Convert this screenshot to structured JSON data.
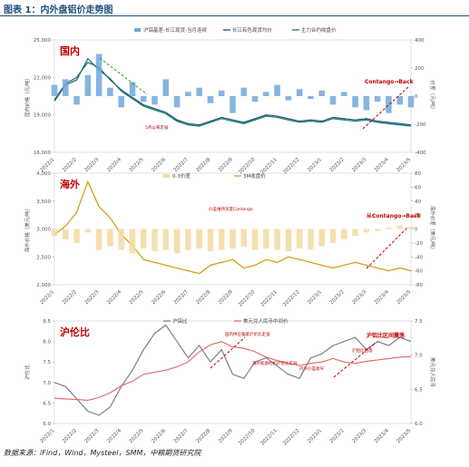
{
  "figure": {
    "title": "图表 1：内外盘铝价走势图",
    "source": "数据来源：iFind，Wind，Mysteel，SMM，中粮期货研究院"
  },
  "colors": {
    "title": "#1f4e79",
    "accent_red": "#c00000",
    "blue_line": "#1f4e79",
    "blue_bar": "#6fa8dc",
    "gray_line": "#7f7f7f",
    "gold_line": "#d4a017",
    "gold_bar": "#f3d9a0",
    "teal_line": "#1a7a6e",
    "red_line": "#e06666",
    "green_highlight": "#33a02c"
  },
  "chart_data": [
    {
      "type": "line",
      "panel": "domestic",
      "tag": "国内",
      "x_ticks": [
        "2022/1",
        "2022/2",
        "2022/3",
        "2022/4",
        "2022/5",
        "2022/6",
        "2022/7",
        "2022/8",
        "2022/9",
        "2022/10",
        "2022/11",
        "2022/12",
        "2023/1",
        "2023/2",
        "2023/3",
        "2023/4",
        "2023/5"
      ],
      "ylabel_left": "国内价格（元/吨）",
      "ylabel_right": "价差（元/吨）",
      "ylim_left": [
        16000,
        25000
      ],
      "yticks_left": [
        16000,
        19000,
        22000,
        25000
      ],
      "ylim_right": [
        -400,
        400
      ],
      "yticks_right": [
        -400,
        -200,
        0,
        200,
        400
      ],
      "legend": [
        "沪铝基差-长江现货-当月连续",
        "长江有色现货均价",
        "主力合约收盘价"
      ],
      "annotations": [
        "Contango→Back",
        "5月以来走弱"
      ],
      "series": [
        {
          "name": "长江有色现货均价",
          "axis": "left",
          "values": [
            20200,
            21500,
            22000,
            23200,
            22800,
            21800,
            21000,
            20400,
            19800,
            19500,
            19200,
            18600,
            18300,
            18200,
            18500,
            18800,
            18600,
            18400,
            18700,
            19000,
            18900,
            18700,
            18500,
            18600,
            18500,
            18800,
            18700,
            18600,
            18700,
            18500,
            18400,
            18300,
            18200
          ]
        },
        {
          "name": "主力合约收盘价",
          "axis": "left",
          "values": [
            20100,
            21400,
            21800,
            23500,
            22600,
            21900,
            20900,
            20300,
            19700,
            19400,
            19100,
            18500,
            18200,
            18100,
            18400,
            18700,
            18500,
            18300,
            18600,
            18900,
            18800,
            18600,
            18400,
            18500,
            18400,
            18700,
            18600,
            18500,
            18600,
            18400,
            18300,
            18200,
            18100
          ]
        },
        {
          "name": "沪铝基差-长江现货-当月连续",
          "axis": "right",
          "values": [
            80,
            120,
            -60,
            150,
            300,
            60,
            -80,
            100,
            -40,
            -60,
            120,
            -80,
            30,
            60,
            -50,
            40,
            -120,
            60,
            -40,
            30,
            80,
            -30,
            50,
            -20,
            40,
            -60,
            30,
            -80,
            -100,
            -40,
            -120,
            -60,
            -80
          ]
        }
      ]
    },
    {
      "type": "line",
      "panel": "overseas",
      "tag": "海外",
      "x_ticks": [
        "2022/1",
        "2022/2",
        "2022/3",
        "2022/4",
        "2022/5",
        "2022/6",
        "2022/7",
        "2022/8",
        "2022/9",
        "2022/10",
        "2022/11",
        "2022/12",
        "2023/1",
        "2023/2",
        "2023/3",
        "2023/4",
        "2023/5"
      ],
      "ylabel_left": "海外价格（美元/吨）",
      "ylabel_right": "海外价差（美元/吨）",
      "ylim_left": [
        2000,
        4000
      ],
      "yticks_left": [
        2000,
        2500,
        3000,
        3500,
        4000
      ],
      "ylim_right": [
        -80,
        80
      ],
      "yticks_right": [
        -80,
        -60,
        -40,
        -20,
        0,
        20,
        40,
        60,
        80
      ],
      "legend": [
        "0-3价差",
        "3M收盘价"
      ],
      "annotations": [
        "从Contango→Back",
        "价差维持深度Contango"
      ],
      "series": [
        {
          "name": "3M收盘价",
          "axis": "left",
          "values": [
            2900,
            3050,
            3300,
            3850,
            3400,
            3200,
            2900,
            2700,
            2450,
            2400,
            2350,
            2300,
            2250,
            2200,
            2350,
            2400,
            2450,
            2300,
            2350,
            2450,
            2400,
            2500,
            2450,
            2400,
            2350,
            2300,
            2350,
            2400,
            2350,
            2300,
            2250,
            2300,
            2250
          ]
        },
        {
          "name": "0-3价差",
          "axis": "right",
          "values": [
            -10,
            -15,
            -20,
            -5,
            -30,
            -25,
            -30,
            -35,
            -28,
            -32,
            -30,
            -35,
            -30,
            -28,
            -32,
            -30,
            -28,
            -25,
            -30,
            -28,
            -30,
            -32,
            -28,
            -30,
            -25,
            -20,
            -15,
            -10,
            -5,
            -3,
            2,
            5,
            3
          ]
        }
      ]
    },
    {
      "type": "line",
      "panel": "ratio",
      "tag": "沪伦比",
      "x_ticks": [
        "2022/1",
        "2022/2",
        "2022/3",
        "2022/4",
        "2022/5",
        "2022/6",
        "2022/7",
        "2022/8",
        "2022/9",
        "2022/10",
        "2022/11",
        "2022/12",
        "2023/1",
        "2023/2",
        "2023/3",
        "2023/4",
        "2023/5"
      ],
      "ylabel_left": "沪伦比",
      "ylabel_right": "美元兑人民币",
      "ylim_left": [
        6.0,
        8.5
      ],
      "yticks_left": [
        6.0,
        6.5,
        7.0,
        7.5,
        8.0,
        8.5
      ],
      "ylim_right": [
        6.0,
        7.5
      ],
      "yticks_right": [
        6.0,
        6.5,
        7.0,
        7.5
      ],
      "legend": [
        "沪铝比",
        "美元兑人民币中间价"
      ],
      "annotations": [
        "国内供应偏紧沪伦比走强",
        "海外能源危机沪伦比走弱",
        "内外价差收窄",
        "沪铝比回落",
        "沪铝比区间震荡"
      ],
      "series": [
        {
          "name": "沪铝比",
          "axis": "left",
          "values": [
            7.0,
            6.9,
            6.6,
            6.3,
            6.2,
            6.4,
            6.9,
            7.3,
            7.8,
            8.2,
            8.4,
            8.0,
            7.6,
            7.9,
            7.5,
            7.8,
            7.2,
            7.1,
            7.5,
            7.6,
            7.4,
            7.2,
            7.1,
            7.6,
            7.7,
            7.9,
            8.0,
            8.1,
            7.8,
            8.0,
            7.9,
            8.1,
            8.0
          ]
        },
        {
          "name": "美元兑人民币中间价",
          "axis": "right",
          "values": [
            6.37,
            6.36,
            6.35,
            6.34,
            6.38,
            6.45,
            6.55,
            6.62,
            6.72,
            6.75,
            6.78,
            6.83,
            6.9,
            7.05,
            7.15,
            7.2,
            7.12,
            7.1,
            7.05,
            6.97,
            6.92,
            6.88,
            6.85,
            6.88,
            6.9,
            6.95,
            6.9,
            6.88,
            6.91,
            6.93,
            6.95,
            6.97,
            6.98
          ]
        }
      ]
    }
  ]
}
